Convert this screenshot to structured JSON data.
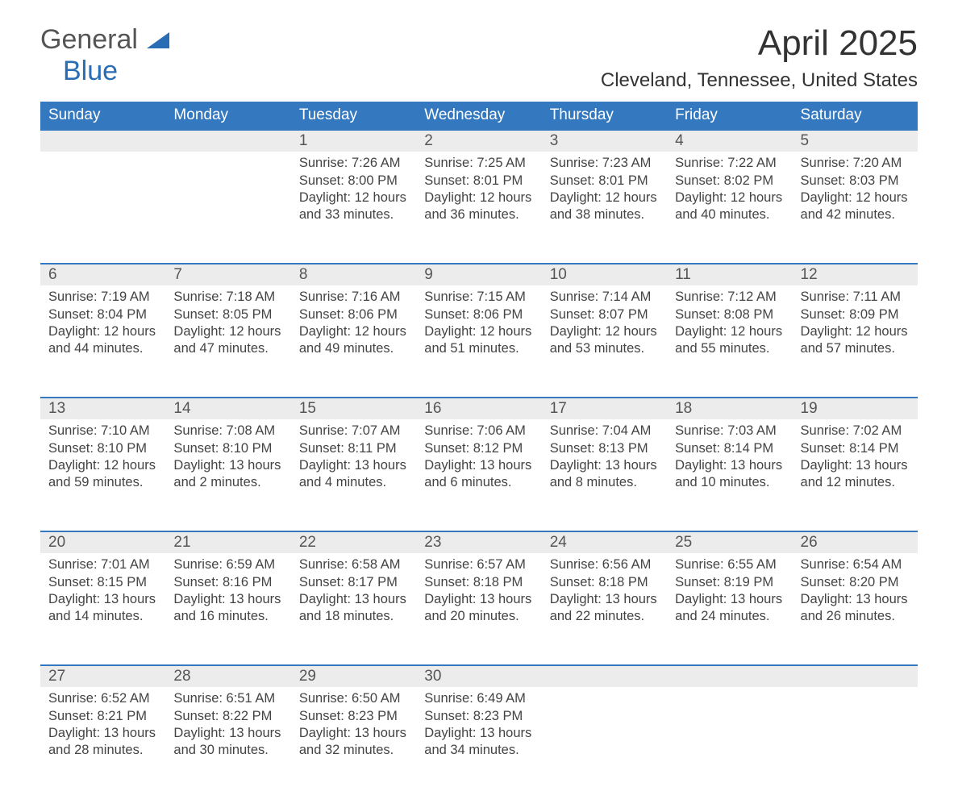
{
  "logo": {
    "general": "General",
    "blue": "Blue"
  },
  "title": "April 2025",
  "location": "Cleveland, Tennessee, United States",
  "colors": {
    "header_bg": "#3478c0",
    "header_text": "#ffffff",
    "daynum_bg": "#ececec",
    "border": "#3478c0",
    "text": "#444444",
    "logo_blue": "#2a6db5"
  },
  "days_of_week": [
    "Sunday",
    "Monday",
    "Tuesday",
    "Wednesday",
    "Thursday",
    "Friday",
    "Saturday"
  ],
  "weeks": [
    [
      {
        "num": "",
        "sunrise": "",
        "sunset": "",
        "daylight": ""
      },
      {
        "num": "",
        "sunrise": "",
        "sunset": "",
        "daylight": ""
      },
      {
        "num": "1",
        "sunrise": "Sunrise: 7:26 AM",
        "sunset": "Sunset: 8:00 PM",
        "daylight": "Daylight: 12 hours and 33 minutes."
      },
      {
        "num": "2",
        "sunrise": "Sunrise: 7:25 AM",
        "sunset": "Sunset: 8:01 PM",
        "daylight": "Daylight: 12 hours and 36 minutes."
      },
      {
        "num": "3",
        "sunrise": "Sunrise: 7:23 AM",
        "sunset": "Sunset: 8:01 PM",
        "daylight": "Daylight: 12 hours and 38 minutes."
      },
      {
        "num": "4",
        "sunrise": "Sunrise: 7:22 AM",
        "sunset": "Sunset: 8:02 PM",
        "daylight": "Daylight: 12 hours and 40 minutes."
      },
      {
        "num": "5",
        "sunrise": "Sunrise: 7:20 AM",
        "sunset": "Sunset: 8:03 PM",
        "daylight": "Daylight: 12 hours and 42 minutes."
      }
    ],
    [
      {
        "num": "6",
        "sunrise": "Sunrise: 7:19 AM",
        "sunset": "Sunset: 8:04 PM",
        "daylight": "Daylight: 12 hours and 44 minutes."
      },
      {
        "num": "7",
        "sunrise": "Sunrise: 7:18 AM",
        "sunset": "Sunset: 8:05 PM",
        "daylight": "Daylight: 12 hours and 47 minutes."
      },
      {
        "num": "8",
        "sunrise": "Sunrise: 7:16 AM",
        "sunset": "Sunset: 8:06 PM",
        "daylight": "Daylight: 12 hours and 49 minutes."
      },
      {
        "num": "9",
        "sunrise": "Sunrise: 7:15 AM",
        "sunset": "Sunset: 8:06 PM",
        "daylight": "Daylight: 12 hours and 51 minutes."
      },
      {
        "num": "10",
        "sunrise": "Sunrise: 7:14 AM",
        "sunset": "Sunset: 8:07 PM",
        "daylight": "Daylight: 12 hours and 53 minutes."
      },
      {
        "num": "11",
        "sunrise": "Sunrise: 7:12 AM",
        "sunset": "Sunset: 8:08 PM",
        "daylight": "Daylight: 12 hours and 55 minutes."
      },
      {
        "num": "12",
        "sunrise": "Sunrise: 7:11 AM",
        "sunset": "Sunset: 8:09 PM",
        "daylight": "Daylight: 12 hours and 57 minutes."
      }
    ],
    [
      {
        "num": "13",
        "sunrise": "Sunrise: 7:10 AM",
        "sunset": "Sunset: 8:10 PM",
        "daylight": "Daylight: 12 hours and 59 minutes."
      },
      {
        "num": "14",
        "sunrise": "Sunrise: 7:08 AM",
        "sunset": "Sunset: 8:10 PM",
        "daylight": "Daylight: 13 hours and 2 minutes."
      },
      {
        "num": "15",
        "sunrise": "Sunrise: 7:07 AM",
        "sunset": "Sunset: 8:11 PM",
        "daylight": "Daylight: 13 hours and 4 minutes."
      },
      {
        "num": "16",
        "sunrise": "Sunrise: 7:06 AM",
        "sunset": "Sunset: 8:12 PM",
        "daylight": "Daylight: 13 hours and 6 minutes."
      },
      {
        "num": "17",
        "sunrise": "Sunrise: 7:04 AM",
        "sunset": "Sunset: 8:13 PM",
        "daylight": "Daylight: 13 hours and 8 minutes."
      },
      {
        "num": "18",
        "sunrise": "Sunrise: 7:03 AM",
        "sunset": "Sunset: 8:14 PM",
        "daylight": "Daylight: 13 hours and 10 minutes."
      },
      {
        "num": "19",
        "sunrise": "Sunrise: 7:02 AM",
        "sunset": "Sunset: 8:14 PM",
        "daylight": "Daylight: 13 hours and 12 minutes."
      }
    ],
    [
      {
        "num": "20",
        "sunrise": "Sunrise: 7:01 AM",
        "sunset": "Sunset: 8:15 PM",
        "daylight": "Daylight: 13 hours and 14 minutes."
      },
      {
        "num": "21",
        "sunrise": "Sunrise: 6:59 AM",
        "sunset": "Sunset: 8:16 PM",
        "daylight": "Daylight: 13 hours and 16 minutes."
      },
      {
        "num": "22",
        "sunrise": "Sunrise: 6:58 AM",
        "sunset": "Sunset: 8:17 PM",
        "daylight": "Daylight: 13 hours and 18 minutes."
      },
      {
        "num": "23",
        "sunrise": "Sunrise: 6:57 AM",
        "sunset": "Sunset: 8:18 PM",
        "daylight": "Daylight: 13 hours and 20 minutes."
      },
      {
        "num": "24",
        "sunrise": "Sunrise: 6:56 AM",
        "sunset": "Sunset: 8:18 PM",
        "daylight": "Daylight: 13 hours and 22 minutes."
      },
      {
        "num": "25",
        "sunrise": "Sunrise: 6:55 AM",
        "sunset": "Sunset: 8:19 PM",
        "daylight": "Daylight: 13 hours and 24 minutes."
      },
      {
        "num": "26",
        "sunrise": "Sunrise: 6:54 AM",
        "sunset": "Sunset: 8:20 PM",
        "daylight": "Daylight: 13 hours and 26 minutes."
      }
    ],
    [
      {
        "num": "27",
        "sunrise": "Sunrise: 6:52 AM",
        "sunset": "Sunset: 8:21 PM",
        "daylight": "Daylight: 13 hours and 28 minutes."
      },
      {
        "num": "28",
        "sunrise": "Sunrise: 6:51 AM",
        "sunset": "Sunset: 8:22 PM",
        "daylight": "Daylight: 13 hours and 30 minutes."
      },
      {
        "num": "29",
        "sunrise": "Sunrise: 6:50 AM",
        "sunset": "Sunset: 8:23 PM",
        "daylight": "Daylight: 13 hours and 32 minutes."
      },
      {
        "num": "30",
        "sunrise": "Sunrise: 6:49 AM",
        "sunset": "Sunset: 8:23 PM",
        "daylight": "Daylight: 13 hours and 34 minutes."
      },
      {
        "num": "",
        "sunrise": "",
        "sunset": "",
        "daylight": ""
      },
      {
        "num": "",
        "sunrise": "",
        "sunset": "",
        "daylight": ""
      },
      {
        "num": "",
        "sunrise": "",
        "sunset": "",
        "daylight": ""
      }
    ]
  ]
}
